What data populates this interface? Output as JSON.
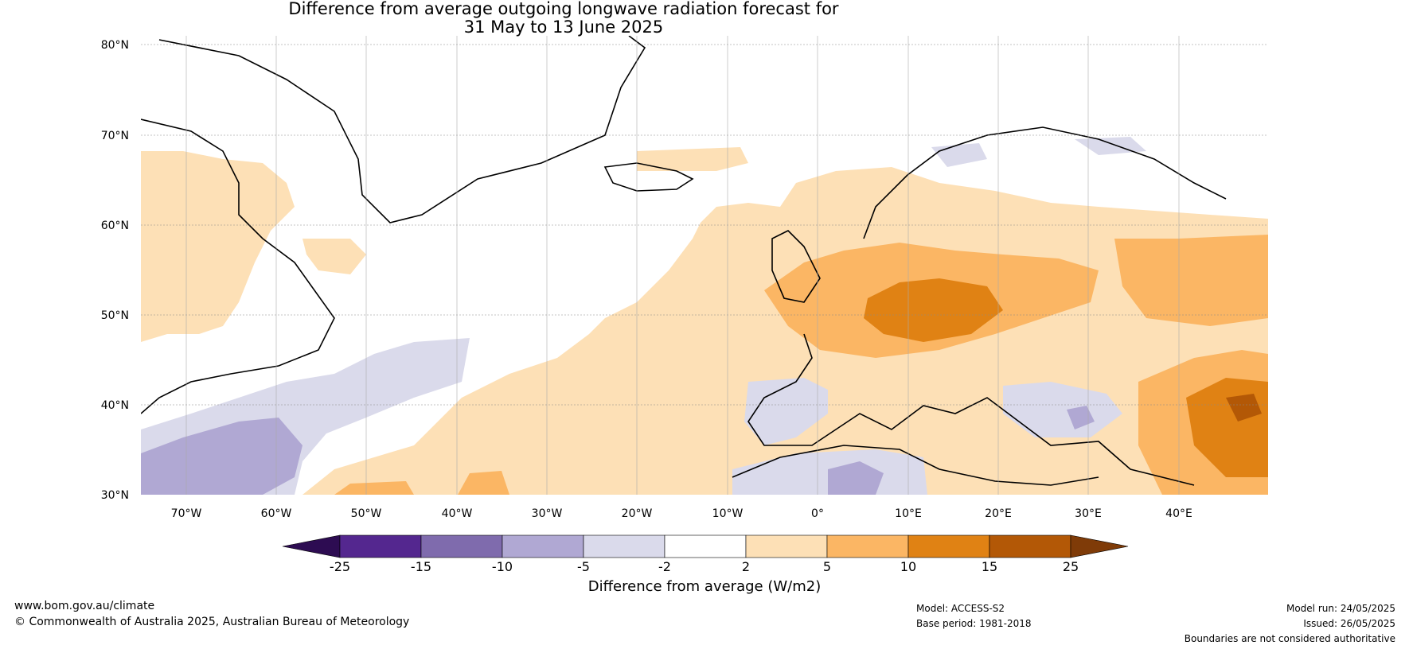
{
  "title": {
    "line1": "Difference from average outgoing longwave radiation forecast for",
    "line2": "31 May to 13 June 2025"
  },
  "map": {
    "lat_labels": [
      "80°N",
      "70°N",
      "60°N",
      "50°N",
      "40°N",
      "30°N"
    ],
    "lon_labels": [
      "70°W",
      "60°W",
      "50°W",
      "40°W",
      "30°W",
      "20°W",
      "10°W",
      "0°",
      "10°E",
      "20°E",
      "30°E",
      "40°E"
    ],
    "lat_range": [
      30,
      80
    ],
    "lon_range": [
      -75,
      50
    ]
  },
  "colorbar": {
    "ticks": [
      "-25",
      "-15",
      "-10",
      "-5",
      "-2",
      "2",
      "5",
      "10",
      "15",
      "25"
    ],
    "colors": [
      "#2d0c52",
      "#54278f",
      "#7f6bad",
      "#b0a8d3",
      "#dadaeb",
      "#ffffff",
      "#fde0b6",
      "#fbb664",
      "#e08214",
      "#b35806",
      "#7f3b08"
    ],
    "label": "Difference from average (W/m2)"
  },
  "footer": {
    "website": "www.bom.gov.au/climate",
    "copyright": "© Commonwealth of Australia 2025, Australian Bureau of Meteorology",
    "model": "Model: ACCESS-S2",
    "base_period": "Base period: 1981-2018",
    "model_run": "Model run: 24/05/2025",
    "issued": "Issued: 26/05/2025",
    "disclaimer": "Boundaries are not considered authoritative"
  }
}
